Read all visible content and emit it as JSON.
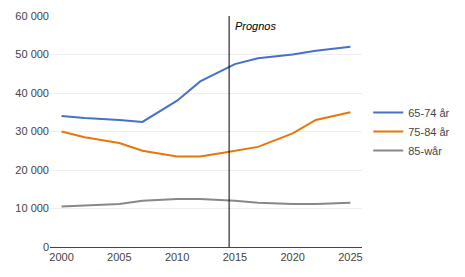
{
  "chart_data": {
    "type": "line",
    "x": [
      2000,
      2002,
      2005,
      2007,
      2010,
      2012,
      2014,
      2015,
      2017,
      2020,
      2022,
      2025
    ],
    "series": [
      {
        "name": "65-74 år",
        "color": "#4472C4",
        "values": [
          34000,
          33500,
          33000,
          32500,
          38000,
          43000,
          46000,
          47500,
          49000,
          50000,
          51000,
          52000
        ]
      },
      {
        "name": "75-84 år",
        "color": "#E8760A",
        "values": [
          30000,
          28500,
          27000,
          25000,
          23500,
          23500,
          24500,
          25000,
          26000,
          29500,
          33000,
          35000
        ]
      },
      {
        "name": "85-wår",
        "color": "#888888",
        "values": [
          10500,
          10800,
          11200,
          12000,
          12500,
          12500,
          12200,
          12000,
          11500,
          11200,
          11200,
          11500
        ]
      }
    ],
    "annotations": [
      {
        "text": "Prognos",
        "x": 2014.5
      }
    ],
    "xlim": [
      1999,
      2026
    ],
    "xticks": [
      2000,
      2005,
      2010,
      2015,
      2020,
      2025
    ],
    "ylim": [
      0,
      60000
    ],
    "yticks": [
      0,
      {
        "value": 10000,
        "label": "10 000"
      },
      {
        "value": 20000,
        "label": "20 000"
      },
      {
        "value": 30000,
        "label": "30 000"
      },
      {
        "value": 40000,
        "label": "40 000"
      },
      {
        "value": 50000,
        "label": "50 000"
      },
      {
        "value": 60000,
        "label": "60 000"
      }
    ],
    "grid": true,
    "legend": "right"
  }
}
